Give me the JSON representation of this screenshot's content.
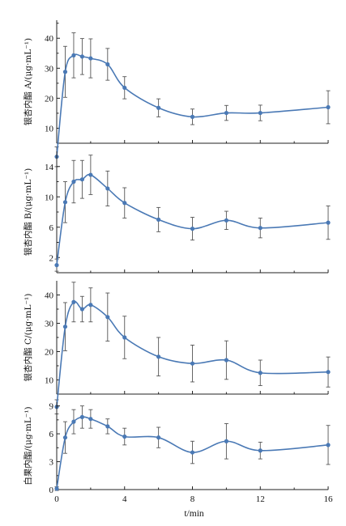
{
  "chart_data": [
    {
      "type": "line",
      "ylabel": "银杏内酯 A/(μg·mL⁻¹)",
      "xlim": [
        0,
        16
      ],
      "ylim": [
        5,
        46
      ],
      "yticks": [
        10,
        20,
        30,
        40
      ],
      "x": [
        0,
        0.5,
        1,
        1.5,
        2,
        3,
        4,
        6,
        8,
        10,
        12,
        16
      ],
      "values": [
        0.5,
        28.8,
        34.3,
        33.9,
        33.3,
        31.3,
        23.5,
        16.8,
        13.8,
        15.1,
        15.1,
        17.0
      ],
      "error": [
        3.3,
        8.5,
        7.5,
        6.0,
        6.5,
        5.3,
        3.7,
        3.0,
        2.6,
        2.5,
        2.6,
        5.5
      ]
    },
    {
      "type": "line",
      "ylabel": "银杏内酯 B/(μg·mL⁻¹)",
      "xlim": [
        0,
        16
      ],
      "ylim": [
        0,
        16
      ],
      "yticks": [
        2,
        6,
        10,
        14
      ],
      "x": [
        0,
        0.5,
        1,
        1.5,
        2,
        3,
        4,
        6,
        8,
        10,
        12,
        16
      ],
      "values": [
        1.0,
        9.3,
        12.0,
        12.3,
        12.9,
        11.1,
        9.2,
        7.0,
        5.8,
        6.9,
        5.9,
        6.6
      ],
      "error": [
        0.8,
        2.7,
        2.8,
        2.5,
        2.6,
        2.3,
        2.0,
        1.6,
        1.5,
        1.2,
        1.3,
        2.2
      ]
    },
    {
      "type": "line",
      "ylabel": "银杏内酯 C/(μg·mL⁻¹)",
      "xlim": [
        0,
        16
      ],
      "ylim": [
        5,
        45
      ],
      "yticks": [
        10,
        20,
        30,
        40
      ],
      "x": [
        0,
        0.5,
        1,
        1.5,
        2,
        3,
        4,
        6,
        8,
        10,
        12,
        16
      ],
      "values": [
        0.5,
        28.8,
        37.5,
        35.0,
        36.5,
        32.2,
        25.0,
        18.2,
        15.8,
        17.0,
        12.5,
        12.8
      ],
      "error": [
        2.5,
        8.5,
        7.0,
        4.5,
        6.0,
        8.5,
        7.5,
        6.8,
        6.5,
        6.8,
        4.5,
        5.3
      ]
    },
    {
      "type": "line",
      "ylabel": "白果内酯/(μg·mL⁻¹)",
      "xlabel": "t/min",
      "xlim": [
        0,
        16
      ],
      "ylim": [
        0,
        9.4
      ],
      "yticks": [
        0,
        3,
        6,
        9
      ],
      "xticks": [
        0,
        4,
        8,
        12,
        16
      ],
      "x": [
        0,
        0.5,
        1,
        1.5,
        2,
        3,
        4,
        6,
        8,
        10,
        12,
        16
      ],
      "values": [
        0.1,
        5.6,
        7.3,
        7.8,
        7.6,
        6.8,
        5.7,
        5.6,
        4.0,
        5.2,
        4.2,
        4.8
      ],
      "error": [
        0.2,
        1.7,
        1.3,
        1.2,
        1.0,
        0.8,
        0.9,
        1.1,
        1.2,
        1.9,
        0.9,
        2.1
      ]
    }
  ],
  "colors": {
    "series": "#4a79b5",
    "error_bars": "#555555",
    "axis": "#222222"
  }
}
